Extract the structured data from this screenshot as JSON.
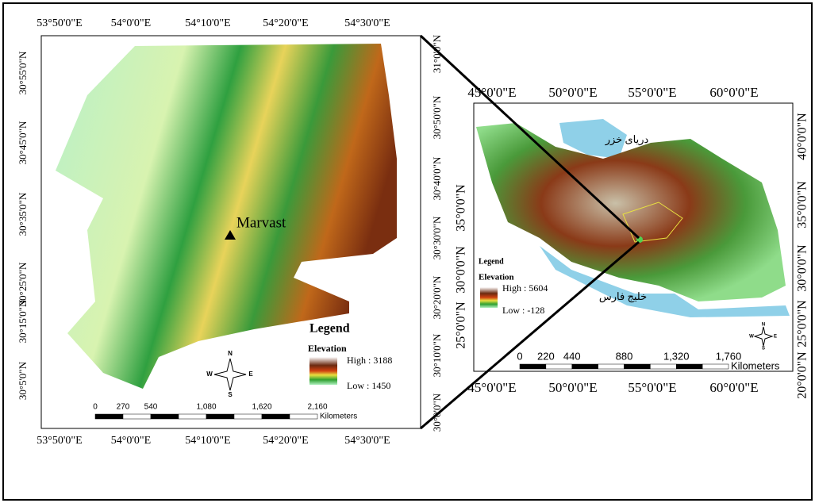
{
  "left_map": {
    "top_lon_labels": [
      "53°50'0\"E",
      "54°0'0\"E",
      "54°10'0\"E",
      "54°20'0\"E",
      "54°30'0\"E"
    ],
    "bottom_lon_labels": [
      "53°50'0\"E",
      "54°0'0\"E",
      "54°10'0\"E",
      "54°20'0\"E",
      "54°30'0\"E"
    ],
    "left_lat_labels": [
      "30°55'0\"N",
      "30°45'0\"N",
      "30°35'0\"N",
      "30°25'0\"N",
      "30°15'0\"N",
      "30°5'0\"N"
    ],
    "right_lat_labels": [
      "31°0'0\"N",
      "30°50'0\"N",
      "30°40'0\"N",
      "30°30'0\"N",
      "30°20'0\"N",
      "30°10'0\"N",
      "30°0'0\"N"
    ],
    "place_label": "Marvast",
    "legend": {
      "title": "Legend",
      "subtitle": "Elevation",
      "high": "High : 3188",
      "low": "Low : 1450"
    },
    "scale": {
      "ticks": [
        "0",
        "270",
        "540",
        "1,080",
        "1,620",
        "2,160"
      ],
      "unit": "Kilometers"
    },
    "compass": {
      "n": "N",
      "s": "S",
      "e": "E",
      "w": "W"
    }
  },
  "right_map": {
    "top_lon_labels": [
      "45°0'0\"E",
      "50°0'0\"E",
      "55°0'0\"E",
      "60°0'0\"E"
    ],
    "bottom_lon_labels": [
      "45°0'0\"E",
      "50°0'0\"E",
      "55°0'0\"E",
      "60°0'0\"E"
    ],
    "left_lat_labels": [
      "35°0'0\"N",
      "30°0'0\"N",
      "25°0'0\"N"
    ],
    "right_lat_labels": [
      "40°0'0\"N",
      "35°0'0\"N",
      "30°0'0\"N",
      "25°0'0\"N",
      "20°0'0\"N"
    ],
    "sea_labels": [
      "دریای خزر",
      "خلیج فارس"
    ],
    "legend": {
      "title": "Legend",
      "subtitle": "Elevation",
      "high": "High : 5604",
      "low": "Low : -128"
    },
    "scale": {
      "ticks": [
        "0",
        "220",
        "440",
        "880",
        "1,320",
        "1,760"
      ],
      "unit": "Kilometers"
    },
    "compass": {
      "n": "N",
      "s": "S",
      "e": "E",
      "w": "W"
    }
  }
}
